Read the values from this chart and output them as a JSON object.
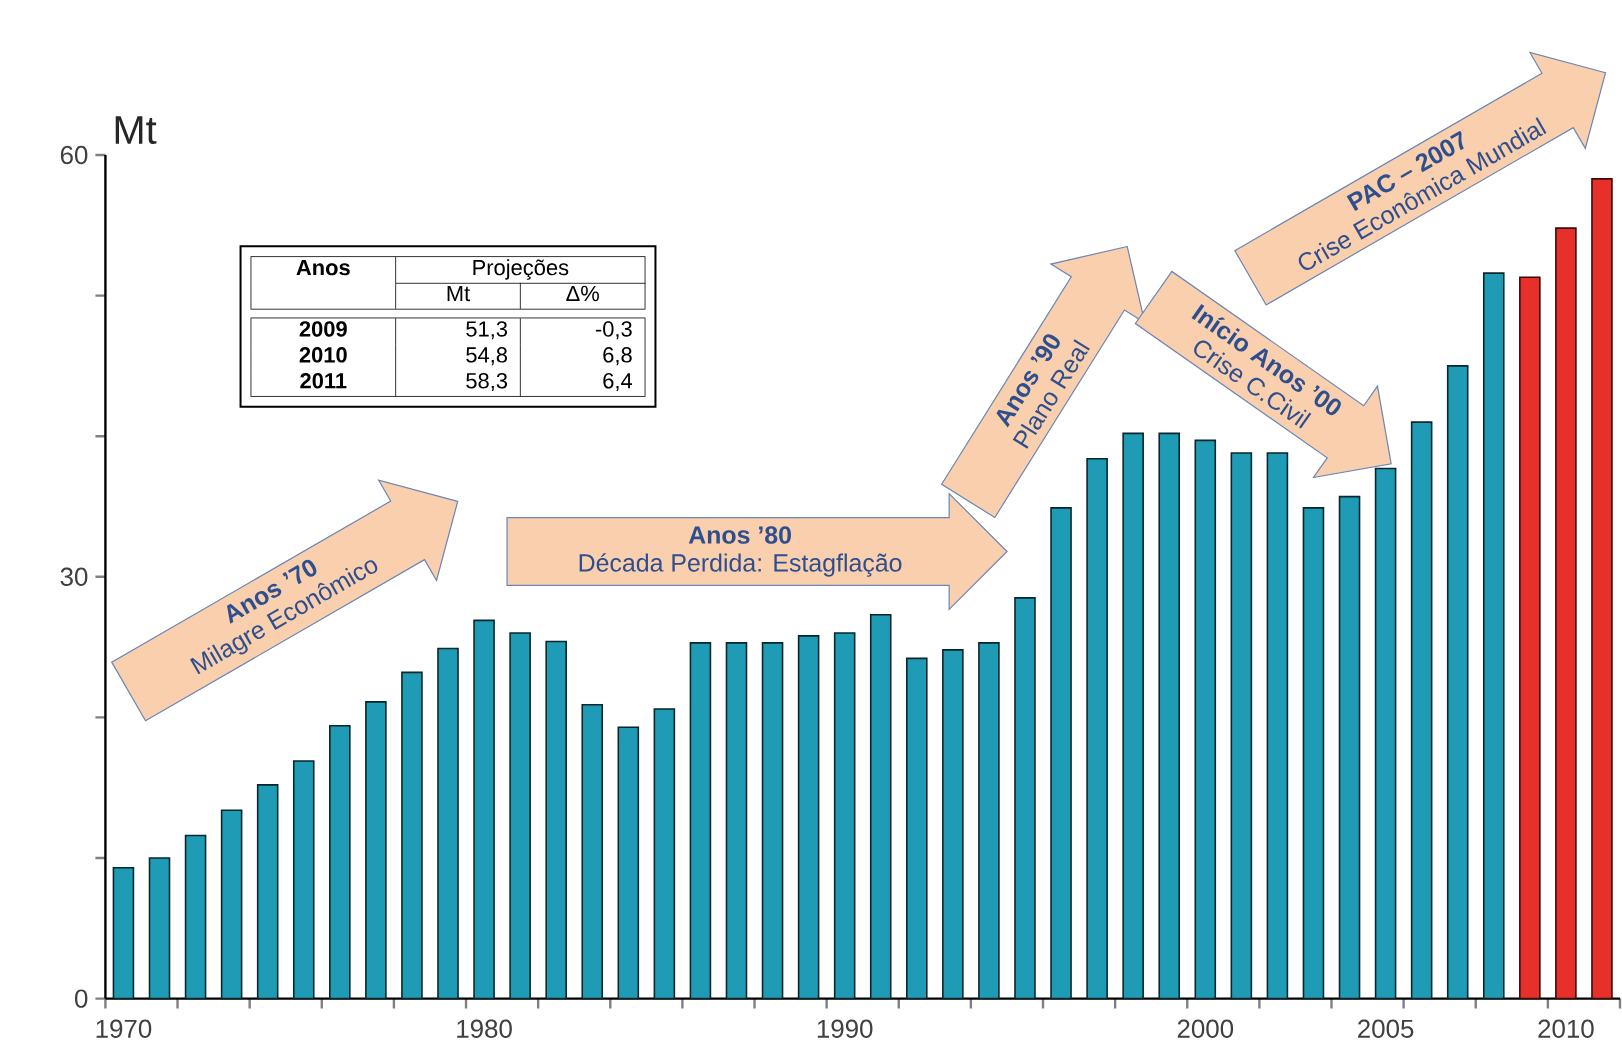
{
  "chart_data": {
    "type": "bar",
    "ylabel": "Mt",
    "x": [
      1970,
      1971,
      1972,
      1973,
      1974,
      1975,
      1976,
      1977,
      1978,
      1979,
      1980,
      1981,
      1982,
      1983,
      1984,
      1985,
      1986,
      1987,
      1988,
      1989,
      1990,
      1991,
      1992,
      1993,
      1994,
      1995,
      1996,
      1997,
      1998,
      1999,
      2000,
      2001,
      2002,
      2003,
      2004,
      2005,
      2006,
      2007,
      2008,
      2009,
      2010,
      2011
    ],
    "values": [
      9.3,
      10.0,
      11.6,
      13.4,
      15.2,
      16.9,
      19.4,
      21.1,
      23.2,
      24.9,
      26.9,
      26.0,
      25.4,
      20.9,
      19.3,
      20.6,
      25.3,
      25.3,
      25.3,
      25.8,
      26.0,
      27.3,
      24.2,
      24.8,
      25.3,
      28.5,
      34.9,
      38.4,
      40.2,
      40.2,
      39.7,
      38.8,
      38.8,
      34.9,
      35.7,
      37.7,
      41.0,
      45.0,
      51.6,
      51.3,
      54.8,
      58.3
    ],
    "colors": [
      "#1f9bb5",
      "#1f9bb5",
      "#1f9bb5",
      "#1f9bb5",
      "#1f9bb5",
      "#1f9bb5",
      "#1f9bb5",
      "#1f9bb5",
      "#1f9bb5",
      "#1f9bb5",
      "#1f9bb5",
      "#1f9bb5",
      "#1f9bb5",
      "#1f9bb5",
      "#1f9bb5",
      "#1f9bb5",
      "#1f9bb5",
      "#1f9bb5",
      "#1f9bb5",
      "#1f9bb5",
      "#1f9bb5",
      "#1f9bb5",
      "#1f9bb5",
      "#1f9bb5",
      "#1f9bb5",
      "#1f9bb5",
      "#1f9bb5",
      "#1f9bb5",
      "#1f9bb5",
      "#1f9bb5",
      "#1f9bb5",
      "#1f9bb5",
      "#1f9bb5",
      "#1f9bb5",
      "#1f9bb5",
      "#1f9bb5",
      "#1f9bb5",
      "#1f9bb5",
      "#1f9bb5",
      "#e8302a",
      "#e8302a",
      "#e8302a"
    ],
    "xlim": [
      1969.5,
      2011.5
    ],
    "xticks": [
      {
        "value": 1969.5,
        "label": null
      },
      {
        "value": 1970,
        "label": "1970"
      },
      {
        "value": 1971.5,
        "label": null
      },
      {
        "value": 1973.5,
        "label": null
      },
      {
        "value": 1975.5,
        "label": null
      },
      {
        "value": 1977.5,
        "label": null
      },
      {
        "value": 1979.5,
        "label": null
      },
      {
        "value": 1980,
        "label": "1980"
      },
      {
        "value": 1981.5,
        "label": null
      },
      {
        "value": 1983.5,
        "label": null
      },
      {
        "value": 1985.5,
        "label": null
      },
      {
        "value": 1987.5,
        "label": null
      },
      {
        "value": 1989.5,
        "label": null
      },
      {
        "value": 1990,
        "label": "1990"
      },
      {
        "value": 1991.5,
        "label": null
      },
      {
        "value": 1993.5,
        "label": null
      },
      {
        "value": 1995.5,
        "label": null
      },
      {
        "value": 1997.5,
        "label": null
      },
      {
        "value": 1999.5,
        "label": null
      },
      {
        "value": 2000,
        "label": "2000"
      },
      {
        "value": 2001.5,
        "label": null
      },
      {
        "value": 2003.5,
        "label": null
      },
      {
        "value": 2005,
        "label": "2005"
      },
      {
        "value": 2005.5,
        "label": null
      },
      {
        "value": 2007.5,
        "label": null
      },
      {
        "value": 2009.5,
        "label": null
      },
      {
        "value": 2010,
        "label": "2010"
      },
      {
        "value": 2011.5,
        "label": null
      }
    ],
    "ylim": [
      0,
      60
    ],
    "yticks": [
      0,
      {
        "value": 10,
        "label": null
      },
      {
        "value": 20,
        "label": null
      },
      30,
      {
        "value": 40,
        "label": null
      },
      {
        "value": 50,
        "label": null
      },
      60
    ],
    "grid": false,
    "annotations": [
      "Anos ’70",
      "Milagre Econômico",
      "Anos ’80",
      "Década Perdida: Estagflação",
      "Anos ’90",
      "Plano Real",
      "Início Anos ’00",
      "Crise C.Civil",
      "PAC – 2007",
      "Crise Econômica Mundial",
      "Anos",
      "Projeções",
      "Mt",
      "Δ%",
      "2009",
      "51,3",
      "-0,3",
      "2010",
      "54,8",
      "6,8",
      "2011",
      "58,3",
      "6,4"
    ]
  }
}
